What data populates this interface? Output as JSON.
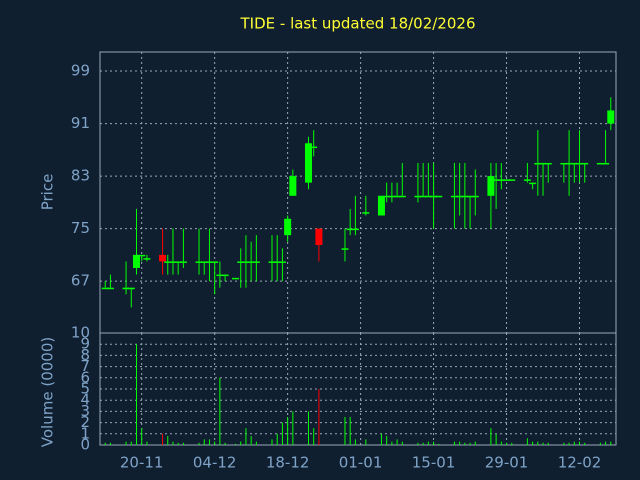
{
  "chart_data": {
    "type": "candlestick",
    "title": "TIDE - last updated 18/02/2026",
    "ylabel": "Price",
    "up_color": "#00ff00",
    "down_color": "#ff0000",
    "xlim": [
      "12-11",
      "19-02"
    ],
    "xticks": [
      "20-11",
      "04-12",
      "18-12",
      "01-01",
      "15-01",
      "29-01",
      "12-02"
    ],
    "ylim": [
      59.1,
      101.9
    ],
    "yticks": [
      67,
      75,
      83,
      91,
      99
    ],
    "grid": true,
    "x": [
      "13-11",
      "14-11",
      "17-11",
      "18-11",
      "19-11",
      "20-11",
      "21-11",
      "24-11",
      "25-11",
      "26-11",
      "27-11",
      "28-11",
      "01-12",
      "02-12",
      "03-12",
      "04-12",
      "05-12",
      "06-12",
      "08-12",
      "09-12",
      "10-12",
      "11-12",
      "12-12",
      "15-12",
      "16-12",
      "17-12",
      "18-12",
      "19-12",
      "22-12",
      "23-12",
      "24-12",
      "29-12",
      "30-12",
      "31-12",
      "02-01",
      "05-01",
      "06-01",
      "07-01",
      "08-01",
      "09-01",
      "12-01",
      "13-01",
      "14-01",
      "15-01",
      "16-01",
      "19-01",
      "20-01",
      "21-01",
      "22-01",
      "23-01",
      "26-01",
      "27-01",
      "28-01",
      "29-01",
      "30-01",
      "02-02",
      "03-02",
      "04-02",
      "05-02",
      "06-02",
      "09-02",
      "10-02",
      "11-02",
      "12-02",
      "13-02",
      "16-02",
      "17-02",
      "18-02"
    ],
    "open": [
      66,
      66,
      66,
      66,
      69,
      71,
      70.5,
      71,
      70,
      70,
      70,
      70,
      70,
      70,
      70,
      70,
      68,
      68,
      67.5,
      70,
      70,
      70,
      70,
      70,
      70,
      70,
      74,
      80,
      82,
      87.5,
      75,
      72,
      75,
      75,
      77.5,
      77,
      80,
      80,
      80,
      80,
      80,
      80,
      80,
      80,
      80,
      80,
      80,
      80,
      80,
      80,
      80,
      82.5,
      82.5,
      82.5,
      82.5,
      82.5,
      82,
      85,
      85,
      85,
      85,
      85,
      85,
      85,
      85,
      85,
      85,
      91
    ],
    "high": [
      67,
      68,
      70,
      66,
      78,
      71,
      71,
      75,
      71,
      75,
      70,
      75,
      75,
      70,
      75,
      70,
      70,
      68,
      67.5,
      72,
      74,
      73,
      74,
      74,
      74,
      72,
      77,
      84,
      89,
      90,
      75,
      75,
      78,
      80,
      80,
      80,
      82,
      82,
      82,
      85,
      85,
      85,
      85,
      85,
      80,
      85,
      85,
      85,
      80,
      84,
      85,
      85,
      85,
      82.5,
      82.5,
      85,
      82,
      90,
      85,
      85,
      85,
      90,
      85,
      90,
      85,
      85,
      90,
      95
    ],
    "low": [
      66,
      66,
      65,
      63,
      68,
      70,
      70,
      68,
      68,
      68,
      68,
      69,
      68,
      68,
      67,
      65,
      66,
      67,
      67.5,
      66,
      66,
      67,
      67,
      67,
      67,
      67,
      73,
      80,
      81,
      86,
      70,
      70,
      74,
      74,
      77,
      77,
      79,
      79,
      80,
      80,
      79,
      80,
      80,
      75,
      80,
      75,
      77,
      75,
      75,
      77,
      75,
      78,
      81,
      82.5,
      82.5,
      82,
      81,
      80,
      80,
      82,
      82,
      80,
      82,
      82,
      82,
      85,
      85,
      90
    ],
    "close": [
      66,
      66,
      66,
      66,
      71,
      71,
      70.5,
      70,
      70,
      70,
      70,
      70,
      70,
      70,
      70,
      70,
      68,
      68,
      67.5,
      70,
      70,
      70,
      70,
      70,
      70,
      70,
      76.5,
      83,
      88,
      87.5,
      72.5,
      72,
      75,
      75,
      77.5,
      80,
      80,
      80,
      80,
      80,
      80,
      80,
      80,
      80,
      80,
      80,
      80,
      80,
      80,
      80,
      83,
      82.5,
      82.5,
      82.5,
      82.5,
      82.5,
      82,
      85,
      85,
      85,
      85,
      85,
      85,
      85,
      85,
      85,
      85,
      93
    ],
    "volume": {
      "label": "Volume (0000)",
      "ylim": [
        0,
        10
      ],
      "yticks": [
        0,
        1,
        2,
        3,
        4,
        5,
        6,
        7,
        8,
        9,
        10
      ],
      "values": [
        0.2,
        0.2,
        0.3,
        0.3,
        9,
        1.5,
        0.3,
        1,
        0.8,
        0.3,
        0.2,
        0.2,
        0.2,
        0.5,
        0.5,
        0.3,
        6,
        0.2,
        0.1,
        0.3,
        1.5,
        0.8,
        0.3,
        0.5,
        1,
        2,
        2.5,
        3,
        3,
        1.5,
        5,
        2.5,
        2.5,
        0.5,
        0.5,
        1,
        0.8,
        0.3,
        0.5,
        0.3,
        0.2,
        0.2,
        0.3,
        0.3,
        0.1,
        0.3,
        0.3,
        0.2,
        0.2,
        0.3,
        1.5,
        1,
        0.3,
        0.2,
        0.2,
        0.6,
        0.3,
        0.3,
        0.2,
        0.2,
        0.2,
        0.2,
        0.3,
        0.3,
        0.2,
        0.2,
        0.3,
        0.3
      ]
    }
  }
}
